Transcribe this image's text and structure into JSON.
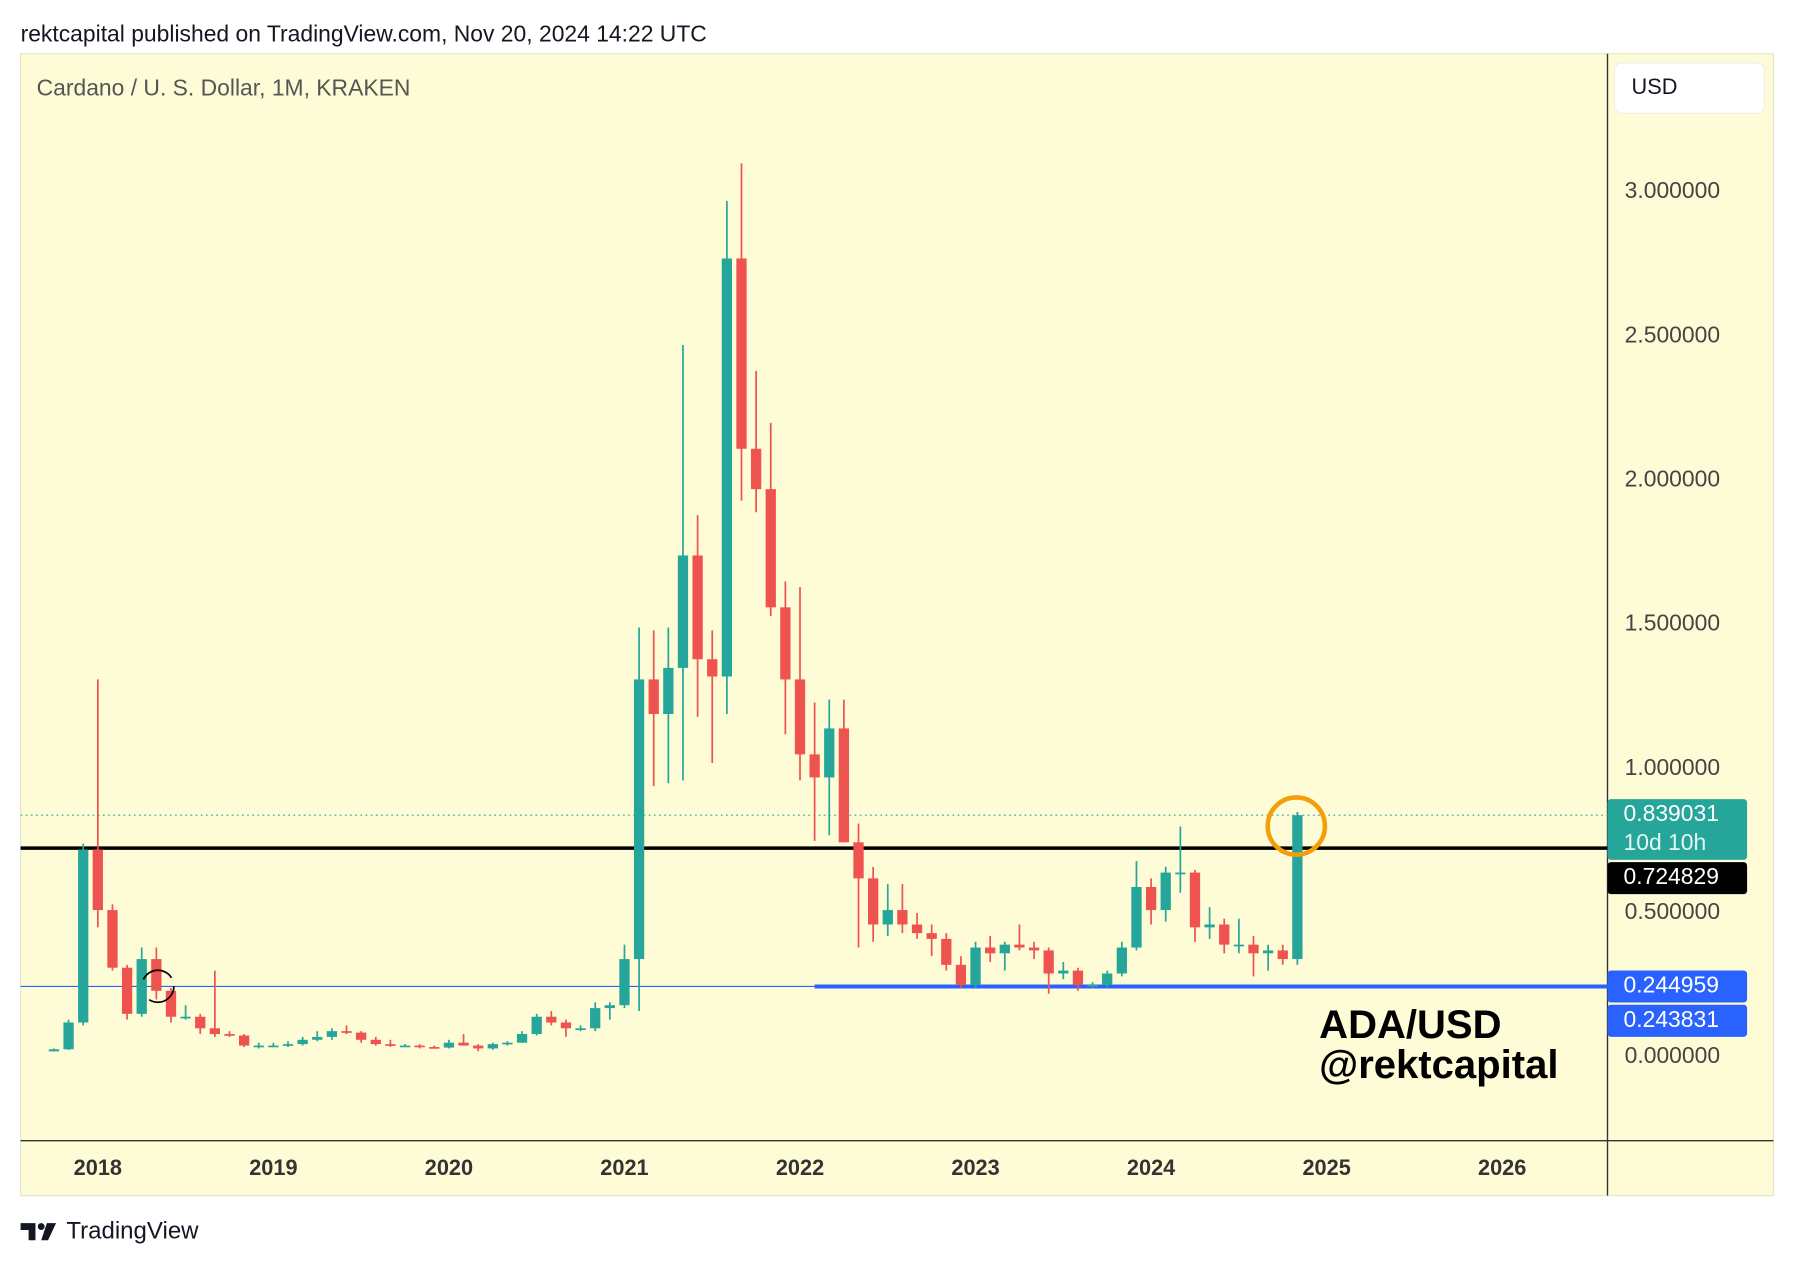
{
  "header": {
    "published": "rektcapital published on TradingView.com, Nov 20, 2024 14:22 UTC",
    "logo": "TradingView"
  },
  "chart_data": {
    "type": "candlestick",
    "title": "Cardano / U. S. Dollar, 1M, KRAKEN",
    "currency": "USD",
    "x": [
      "2017-10",
      "2017-11",
      "2017-12",
      "2018-01",
      "2018-02",
      "2018-03",
      "2018-04",
      "2018-05",
      "2018-06",
      "2018-07",
      "2018-08",
      "2018-09",
      "2018-10",
      "2018-11",
      "2018-12",
      "2019-01",
      "2019-02",
      "2019-03",
      "2019-04",
      "2019-05",
      "2019-06",
      "2019-07",
      "2019-08",
      "2019-09",
      "2019-10",
      "2019-11",
      "2019-12",
      "2020-01",
      "2020-02",
      "2020-03",
      "2020-04",
      "2020-05",
      "2020-06",
      "2020-07",
      "2020-08",
      "2020-09",
      "2020-10",
      "2020-11",
      "2020-12",
      "2021-01",
      "2021-02",
      "2021-03",
      "2021-04",
      "2021-05",
      "2021-06",
      "2021-07",
      "2021-08",
      "2021-09",
      "2021-10",
      "2021-11",
      "2021-12",
      "2022-01",
      "2022-02",
      "2022-03",
      "2022-04",
      "2022-05",
      "2022-06",
      "2022-07",
      "2022-08",
      "2022-09",
      "2022-10",
      "2022-11",
      "2022-12",
      "2023-01",
      "2023-02",
      "2023-03",
      "2023-04",
      "2023-05",
      "2023-06",
      "2023-07",
      "2023-08",
      "2023-09",
      "2023-10",
      "2023-11",
      "2023-12",
      "2024-01",
      "2024-02",
      "2024-03",
      "2024-04",
      "2024-05",
      "2024-06",
      "2024-07",
      "2024-08",
      "2024-09",
      "2024-10",
      "2024-11"
    ],
    "open": [
      0.02,
      0.027,
      0.12,
      0.72,
      0.51,
      0.31,
      0.15,
      0.34,
      0.23,
      0.14,
      0.14,
      0.1,
      0.08,
      0.075,
      0.04,
      0.04,
      0.04,
      0.045,
      0.06,
      0.07,
      0.09,
      0.085,
      0.06,
      0.045,
      0.04,
      0.04,
      0.035,
      0.033,
      0.05,
      0.04,
      0.03,
      0.045,
      0.05,
      0.08,
      0.14,
      0.12,
      0.1,
      0.1,
      0.17,
      0.18,
      0.34,
      1.31,
      1.19,
      1.35,
      1.74,
      1.38,
      1.32,
      2.77,
      2.11,
      1.97,
      1.56,
      1.31,
      1.05,
      0.97,
      1.14,
      0.745,
      0.62,
      0.46,
      0.51,
      0.46,
      0.43,
      0.41,
      0.32,
      0.25,
      0.38,
      0.36,
      0.39,
      0.38,
      0.37,
      0.29,
      0.3,
      0.25,
      0.25,
      0.29,
      0.38,
      0.59,
      0.51,
      0.64,
      0.64,
      0.45,
      0.46,
      0.39,
      0.39,
      0.36,
      0.37,
      0.34
    ],
    "high": [
      0.03,
      0.13,
      0.74,
      1.31,
      0.53,
      0.32,
      0.38,
      0.38,
      0.24,
      0.18,
      0.15,
      0.3,
      0.09,
      0.08,
      0.05,
      0.05,
      0.055,
      0.07,
      0.09,
      0.1,
      0.11,
      0.09,
      0.07,
      0.06,
      0.045,
      0.045,
      0.04,
      0.06,
      0.08,
      0.045,
      0.05,
      0.055,
      0.09,
      0.15,
      0.16,
      0.13,
      0.11,
      0.19,
      0.19,
      0.39,
      1.49,
      1.48,
      1.49,
      2.47,
      1.88,
      1.48,
      2.97,
      3.1,
      2.38,
      2.2,
      1.65,
      1.63,
      1.23,
      1.24,
      1.24,
      0.81,
      0.66,
      0.6,
      0.6,
      0.5,
      0.46,
      0.43,
      0.35,
      0.4,
      0.42,
      0.4,
      0.46,
      0.4,
      0.38,
      0.33,
      0.31,
      0.26,
      0.3,
      0.4,
      0.68,
      0.62,
      0.66,
      0.8,
      0.65,
      0.52,
      0.48,
      0.48,
      0.42,
      0.39,
      0.39,
      0.85
    ],
    "low": [
      0.02,
      0.025,
      0.11,
      0.45,
      0.3,
      0.13,
      0.14,
      0.2,
      0.12,
      0.13,
      0.08,
      0.07,
      0.07,
      0.035,
      0.03,
      0.035,
      0.035,
      0.04,
      0.055,
      0.06,
      0.08,
      0.05,
      0.04,
      0.035,
      0.035,
      0.03,
      0.03,
      0.03,
      0.04,
      0.02,
      0.025,
      0.04,
      0.05,
      0.075,
      0.11,
      0.07,
      0.09,
      0.09,
      0.13,
      0.17,
      0.16,
      0.94,
      0.95,
      0.96,
      1.18,
      1.02,
      1.19,
      1.93,
      1.89,
      1.53,
      1.12,
      0.96,
      0.75,
      0.77,
      0.75,
      0.38,
      0.4,
      0.42,
      0.43,
      0.41,
      0.35,
      0.3,
      0.24,
      0.24,
      0.33,
      0.3,
      0.37,
      0.34,
      0.22,
      0.27,
      0.23,
      0.24,
      0.24,
      0.28,
      0.37,
      0.46,
      0.47,
      0.57,
      0.4,
      0.41,
      0.36,
      0.36,
      0.28,
      0.3,
      0.32,
      0.32
    ],
    "close": [
      0.027,
      0.12,
      0.72,
      0.51,
      0.31,
      0.15,
      0.34,
      0.23,
      0.14,
      0.14,
      0.1,
      0.08,
      0.075,
      0.04,
      0.04,
      0.04,
      0.045,
      0.06,
      0.07,
      0.09,
      0.085,
      0.06,
      0.045,
      0.04,
      0.04,
      0.035,
      0.033,
      0.05,
      0.04,
      0.03,
      0.045,
      0.05,
      0.08,
      0.14,
      0.12,
      0.1,
      0.1,
      0.17,
      0.18,
      0.34,
      1.31,
      1.19,
      1.35,
      1.74,
      1.38,
      1.32,
      2.77,
      2.11,
      1.97,
      1.56,
      1.31,
      1.05,
      0.97,
      1.14,
      0.745,
      0.62,
      0.46,
      0.51,
      0.46,
      0.43,
      0.41,
      0.32,
      0.25,
      0.38,
      0.36,
      0.39,
      0.38,
      0.37,
      0.29,
      0.3,
      0.25,
      0.25,
      0.29,
      0.38,
      0.59,
      0.51,
      0.64,
      0.64,
      0.45,
      0.46,
      0.39,
      0.39,
      0.36,
      0.37,
      0.34,
      0.839031
    ],
    "up_color": "#26a69a",
    "down_color": "#ef5350",
    "xlim": [
      2017.56,
      2026.6
    ],
    "xticks": [
      2018,
      2019,
      2020,
      2021,
      2022,
      2023,
      2024,
      2025,
      2026
    ],
    "ylim": [
      -0.29,
      3.48
    ],
    "yticks": [
      {
        "value": 0,
        "label": "0.000000"
      },
      {
        "value": 0.5,
        "label": "0.500000"
      },
      {
        "value": 1,
        "label": "1.000000"
      },
      {
        "value": 1.5,
        "label": "1.500000"
      },
      {
        "value": 2,
        "label": "2.000000"
      },
      {
        "value": 2.5,
        "label": "2.500000"
      },
      {
        "value": 3,
        "label": "3.000000"
      }
    ],
    "price_lines": [
      {
        "value": 0.839031,
        "countdown": "10d 10h",
        "color": "#26a69a",
        "style": "dotted"
      },
      {
        "value": 0.724829,
        "color": "#000000",
        "style": "solid"
      },
      {
        "value": 0.244959,
        "color": "#2962ff",
        "style": "solid",
        "start": "2022-02"
      },
      {
        "value": 0.243831,
        "color": "#2962ff",
        "style": "none"
      }
    ],
    "annotations": [
      "ADA/USD",
      "@rektcapital"
    ]
  }
}
